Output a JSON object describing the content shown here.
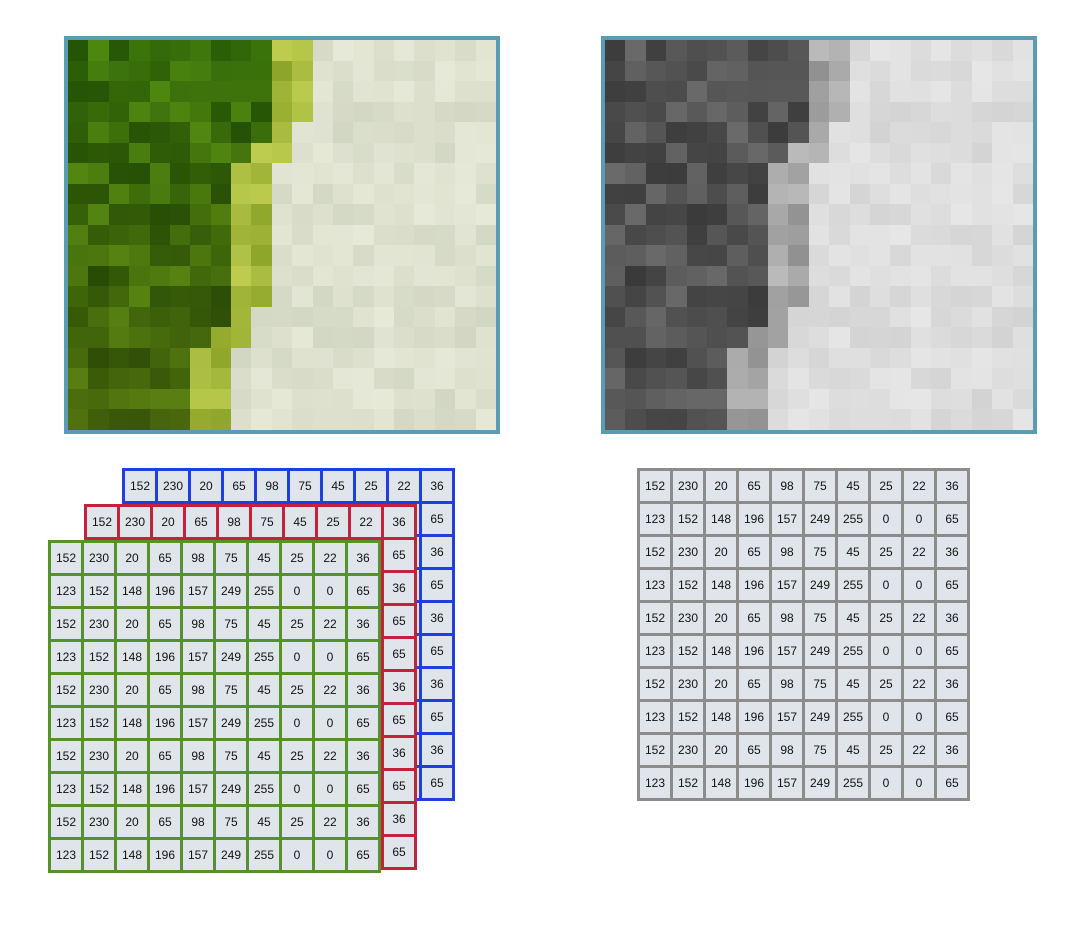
{
  "colors": {
    "frame": "#5b9bb3",
    "blue_channel": "#1f3fe0",
    "red_channel": "#c4213a",
    "green_channel": "#55922a",
    "gray_channel": "#8c8c8c",
    "cell_fill": "#dfe5ea"
  },
  "images": {
    "color_photo": {
      "name": "green-leaf-pixelated-photo"
    },
    "gray_photo": {
      "name": "grayscale-pixelated-photo"
    }
  },
  "matrices": {
    "blue": {
      "name": "blue-channel",
      "rows": [
        [
          "152",
          "230",
          "20",
          "65",
          "98",
          "75",
          "45",
          "25",
          "22",
          "36"
        ],
        [
          "",
          "",
          "",
          "",
          "",
          "",
          "",
          "",
          "",
          "65"
        ],
        [
          "",
          "",
          "",
          "",
          "",
          "",
          "",
          "",
          "",
          "36"
        ],
        [
          "",
          "",
          "",
          "",
          "",
          "",
          "",
          "",
          "",
          "65"
        ],
        [
          "",
          "",
          "",
          "",
          "",
          "",
          "",
          "",
          "",
          "36"
        ],
        [
          "",
          "",
          "",
          "",
          "",
          "",
          "",
          "",
          "",
          "65"
        ],
        [
          "",
          "",
          "",
          "",
          "",
          "",
          "",
          "",
          "",
          "36"
        ],
        [
          "",
          "",
          "",
          "",
          "",
          "",
          "",
          "",
          "",
          "65"
        ],
        [
          "",
          "",
          "",
          "",
          "",
          "",
          "",
          "",
          "",
          "36"
        ],
        [
          "",
          "",
          "",
          "",
          "",
          "",
          "",
          "",
          "",
          "65"
        ]
      ]
    },
    "red": {
      "name": "red-channel",
      "rows": [
        [
          "152",
          "230",
          "20",
          "65",
          "98",
          "75",
          "45",
          "25",
          "22",
          "36"
        ],
        [
          "",
          "",
          "",
          "",
          "",
          "",
          "",
          "",
          "",
          "65"
        ],
        [
          "",
          "",
          "",
          "",
          "",
          "",
          "",
          "",
          "",
          "36"
        ],
        [
          "",
          "",
          "",
          "",
          "",
          "",
          "",
          "",
          "",
          "65"
        ],
        [
          "",
          "",
          "",
          "",
          "",
          "",
          "",
          "",
          "",
          "65"
        ],
        [
          "",
          "",
          "",
          "",
          "",
          "",
          "",
          "",
          "",
          "36"
        ],
        [
          "",
          "",
          "",
          "",
          "",
          "",
          "",
          "",
          "",
          "65"
        ],
        [
          "",
          "",
          "",
          "",
          "",
          "",
          "",
          "",
          "",
          "36"
        ],
        [
          "",
          "",
          "",
          "",
          "",
          "",
          "",
          "",
          "",
          "65"
        ],
        [
          "",
          "",
          "",
          "",
          "",
          "",
          "",
          "",
          "",
          "36"
        ]
      ],
      "extra_rows": [
        [
          "",
          "",
          "",
          "",
          "",
          "",
          "",
          "",
          "",
          "65"
        ]
      ]
    },
    "green": {
      "name": "green-channel",
      "rows": [
        [
          "152",
          "230",
          "20",
          "65",
          "98",
          "75",
          "45",
          "25",
          "22",
          "36"
        ],
        [
          "123",
          "152",
          "148",
          "196",
          "157",
          "249",
          "255",
          "0",
          "0",
          "65"
        ],
        [
          "152",
          "230",
          "20",
          "65",
          "98",
          "75",
          "45",
          "25",
          "22",
          "36"
        ],
        [
          "123",
          "152",
          "148",
          "196",
          "157",
          "249",
          "255",
          "0",
          "0",
          "65"
        ],
        [
          "152",
          "230",
          "20",
          "65",
          "98",
          "75",
          "45",
          "25",
          "22",
          "36"
        ],
        [
          "123",
          "152",
          "148",
          "196",
          "157",
          "249",
          "255",
          "0",
          "0",
          "65"
        ],
        [
          "152",
          "230",
          "20",
          "65",
          "98",
          "75",
          "45",
          "25",
          "22",
          "36"
        ],
        [
          "123",
          "152",
          "148",
          "196",
          "157",
          "249",
          "255",
          "0",
          "0",
          "65"
        ],
        [
          "152",
          "230",
          "20",
          "65",
          "98",
          "75",
          "45",
          "25",
          "22",
          "36"
        ],
        [
          "123",
          "152",
          "148",
          "196",
          "157",
          "249",
          "255",
          "0",
          "0",
          "65"
        ]
      ]
    },
    "gray": {
      "name": "grayscale",
      "rows": [
        [
          "152",
          "230",
          "20",
          "65",
          "98",
          "75",
          "45",
          "25",
          "22",
          "36"
        ],
        [
          "123",
          "152",
          "148",
          "196",
          "157",
          "249",
          "255",
          "0",
          "0",
          "65"
        ],
        [
          "152",
          "230",
          "20",
          "65",
          "98",
          "75",
          "45",
          "25",
          "22",
          "36"
        ],
        [
          "123",
          "152",
          "148",
          "196",
          "157",
          "249",
          "255",
          "0",
          "0",
          "65"
        ],
        [
          "152",
          "230",
          "20",
          "65",
          "98",
          "75",
          "45",
          "25",
          "22",
          "36"
        ],
        [
          "123",
          "152",
          "148",
          "196",
          "157",
          "249",
          "255",
          "0",
          "0",
          "65"
        ],
        [
          "152",
          "230",
          "20",
          "65",
          "98",
          "75",
          "45",
          "25",
          "22",
          "36"
        ],
        [
          "123",
          "152",
          "148",
          "196",
          "157",
          "249",
          "255",
          "0",
          "0",
          "65"
        ],
        [
          "152",
          "230",
          "20",
          "65",
          "98",
          "75",
          "45",
          "25",
          "22",
          "36"
        ],
        [
          "123",
          "152",
          "148",
          "196",
          "157",
          "249",
          "255",
          "0",
          "0",
          "65"
        ]
      ]
    }
  }
}
